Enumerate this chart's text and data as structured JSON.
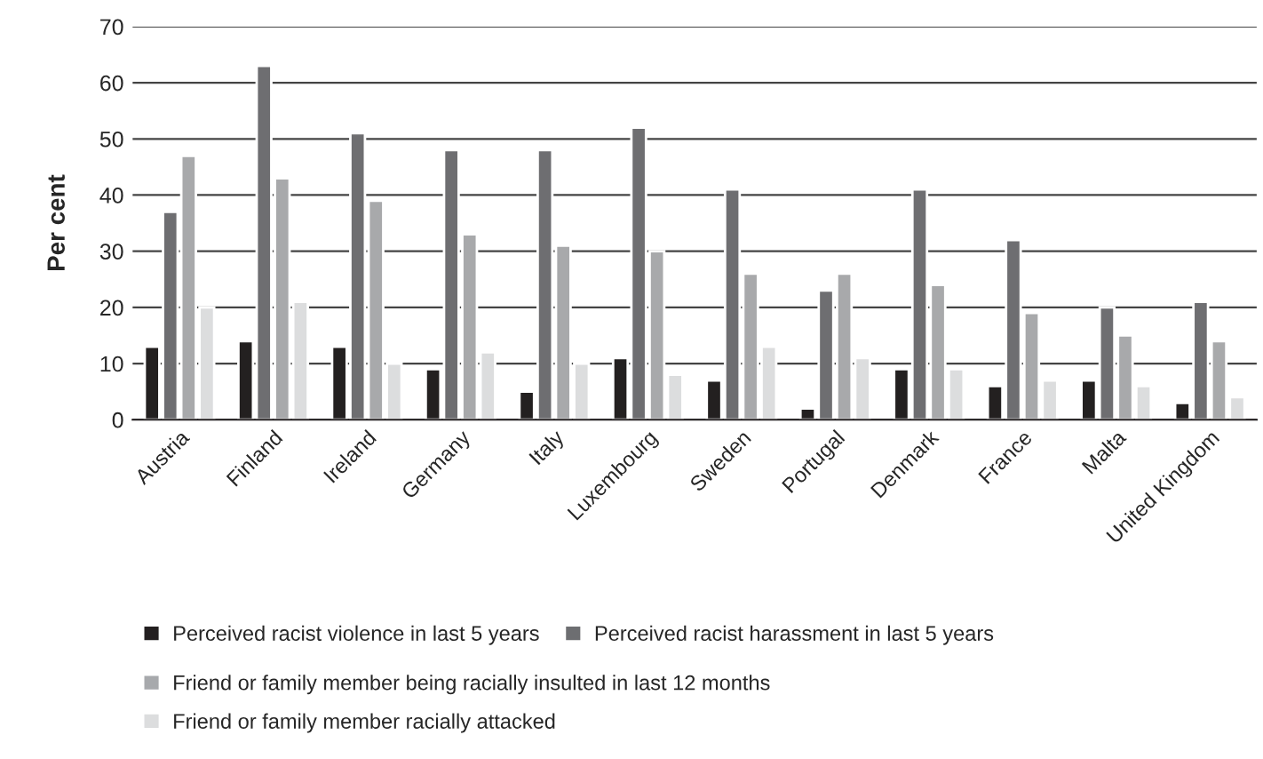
{
  "chart_data": {
    "type": "bar",
    "ylabel": "Per cent",
    "categories": [
      "Austria",
      "Finland",
      "Ireland",
      "Germany",
      "Italy",
      "Luxembourg",
      "Sweden",
      "Portugal",
      "Denmark",
      "France",
      "Malta",
      "United Kingdom"
    ],
    "series": [
      {
        "name": "Perceived racist violence in last 5 years",
        "color": "#231f20",
        "values": [
          13,
          14,
          13,
          9,
          5,
          11,
          7,
          2,
          9,
          6,
          7,
          3
        ]
      },
      {
        "name": "Perceived racist harassment in last 5 years",
        "color": "#6d6e71",
        "values": [
          37,
          63,
          51,
          48,
          48,
          52,
          41,
          23,
          41,
          32,
          20,
          21
        ]
      },
      {
        "name": "Friend or family member being racially insulted in last 12 months",
        "color": "#a7a9ac",
        "values": [
          47,
          43,
          39,
          33,
          31,
          30,
          26,
          26,
          24,
          19,
          15,
          14
        ]
      },
      {
        "name": "Friend or family member racially attacked",
        "color": "#dcddde",
        "values": [
          20,
          21,
          10,
          12,
          10,
          8,
          13,
          11,
          9,
          7,
          6,
          4
        ]
      }
    ],
    "ylim": [
      0,
      70
    ],
    "yticks": [
      0,
      10,
      20,
      30,
      40,
      50,
      60,
      70
    ],
    "grid": "y",
    "legend": "bottom"
  }
}
